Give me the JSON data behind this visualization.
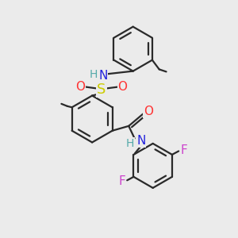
{
  "bg_color": "#ebebeb",
  "line_color": "#2a2a2a",
  "line_width": 1.6,
  "atom_colors": {
    "N": "#2222dd",
    "H": "#55aaaa",
    "S": "#cccc00",
    "O": "#ff3333",
    "F": "#cc44cc",
    "C": "#2a2a2a",
    "Me": "#2a2a2a"
  }
}
